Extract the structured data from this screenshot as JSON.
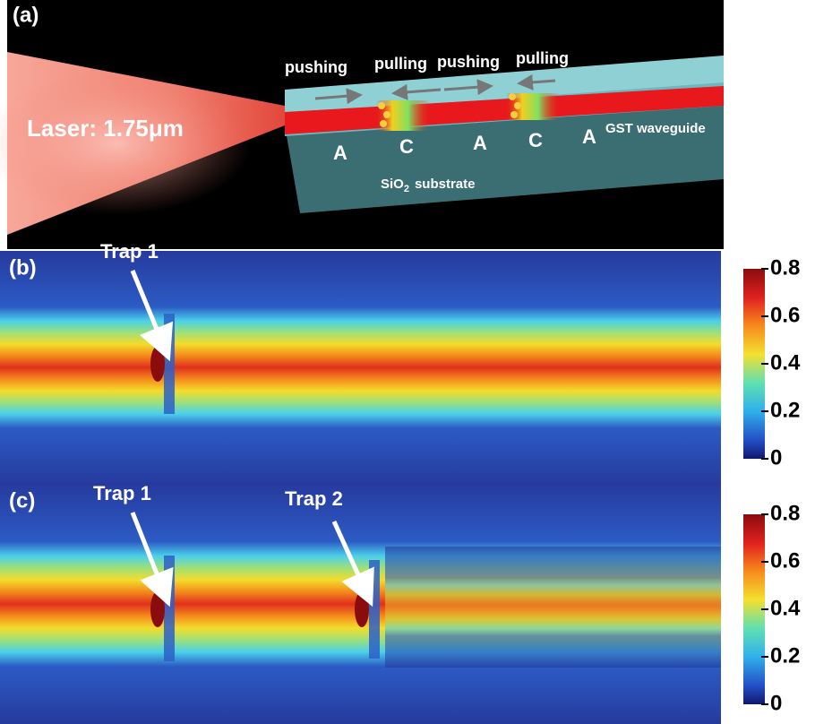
{
  "panels": [
    {
      "label": "(a)",
      "laser": "Laser: 1.75μm",
      "arrows": [
        "pushing",
        "pulling",
        "pushing",
        "pulling"
      ],
      "phases": [
        "A",
        "C",
        "A",
        "C",
        "A"
      ],
      "waveguide": "GST waveguide",
      "substrate": {
        "formula": "SiO",
        "subscript": "2",
        "text": "substrate"
      }
    },
    {
      "label": "(b)",
      "traps": [
        "Trap 1"
      ],
      "colorbar_ticks": [
        0.8,
        0.6,
        0.4,
        0.2,
        0
      ]
    },
    {
      "label": "(c)",
      "traps": [
        "Trap 1",
        "Trap 2"
      ],
      "colorbar_ticks": [
        0.8,
        0.6,
        0.4,
        0.2,
        0
      ]
    }
  ]
}
